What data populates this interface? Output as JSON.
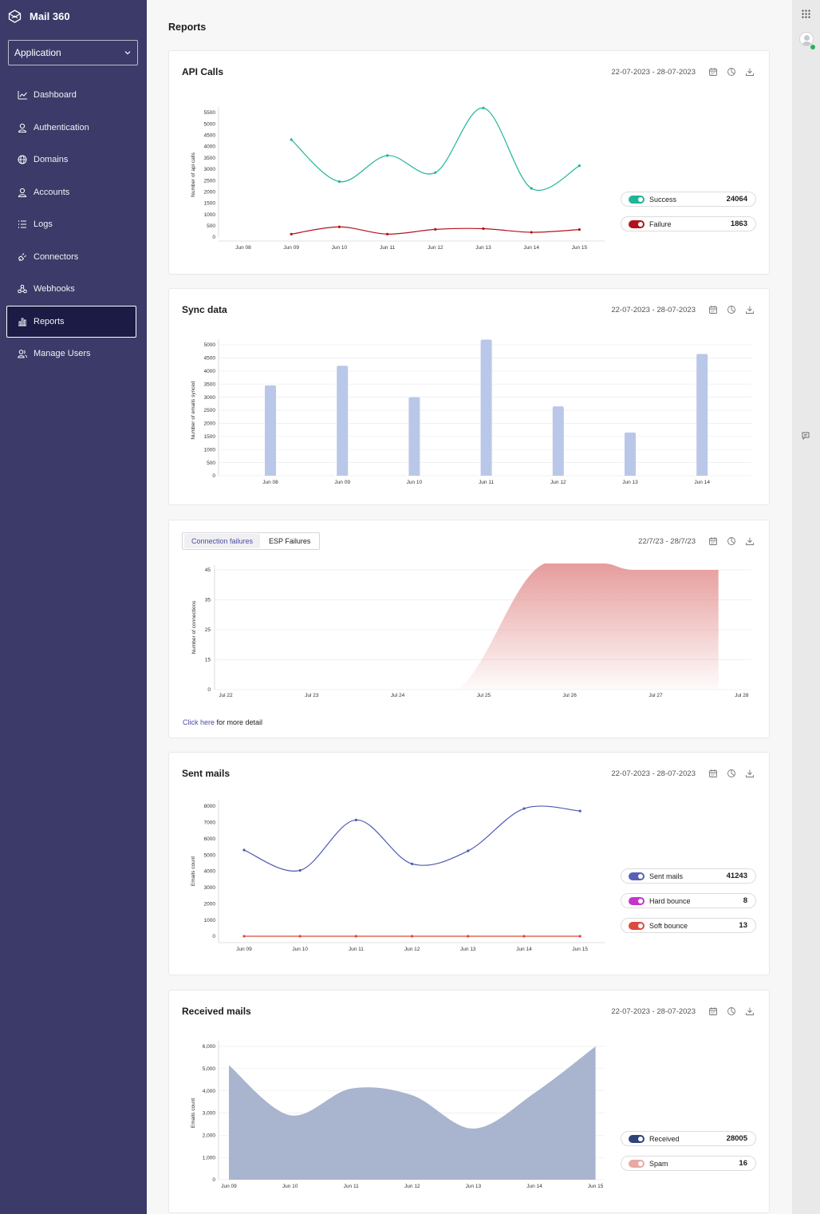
{
  "app": {
    "name": "Mail 360",
    "selector": "Application"
  },
  "sidebar": {
    "items": [
      {
        "label": "Dashboard",
        "icon": "chart-line-icon"
      },
      {
        "label": "Authentication",
        "icon": "user-icon"
      },
      {
        "label": "Domains",
        "icon": "globe-icon"
      },
      {
        "label": "Accounts",
        "icon": "user-icon"
      },
      {
        "label": "Logs",
        "icon": "list-icon"
      },
      {
        "label": "Connectors",
        "icon": "plug-icon"
      },
      {
        "label": "Webhooks",
        "icon": "webhook-icon"
      },
      {
        "label": "Reports",
        "icon": "bar-chart-icon",
        "active": true
      },
      {
        "label": "Manage Users",
        "icon": "users-icon"
      }
    ]
  },
  "page": {
    "title": "Reports"
  },
  "cards": {
    "api": {
      "title": "API Calls",
      "date": "22-07-2023 - 28-07-2023"
    },
    "sync": {
      "title": "Sync data",
      "date": "22-07-2023 - 28-07-2023"
    },
    "connection": {
      "tabs": [
        "Connection failures",
        "ESP Failures"
      ],
      "date": "22/7/23 - 28/7/23",
      "link": "Click here",
      "link_suffix": " for more detail"
    },
    "sent": {
      "title": "Sent mails",
      "date": "22-07-2023 - 28-07-2023"
    },
    "received": {
      "title": "Received mails",
      "date": "22-07-2023 - 28-07-2023"
    }
  },
  "legends": {
    "api": [
      {
        "name": "Success",
        "value": "24064",
        "color": "#1fb59a"
      },
      {
        "name": "Failure",
        "value": "1863",
        "color": "#b3121d"
      }
    ],
    "sent": [
      {
        "name": "Sent mails",
        "value": "41243",
        "color": "#5a5fb8"
      },
      {
        "name": "Hard bounce",
        "value": "8",
        "color": "#c435c9"
      },
      {
        "name": "Soft bounce",
        "value": "13",
        "color": "#dc4a3c"
      }
    ],
    "received": [
      {
        "name": "Received",
        "value": "28005",
        "color": "#2f4479"
      },
      {
        "name": "Spam",
        "value": "16",
        "color": "#e8a8a4"
      }
    ]
  },
  "chart_data": [
    {
      "id": "api",
      "type": "line",
      "ylabel": "Number of api calls",
      "yticks": [
        0,
        500,
        1000,
        1500,
        2000,
        2500,
        3000,
        3500,
        4000,
        4500,
        5000,
        5500
      ],
      "ylim": [
        0,
        5500
      ],
      "categories": [
        "Jun 08",
        "Jun 09",
        "Jun 10",
        "Jun 11",
        "Jun 12",
        "Jun 13",
        "Jun 14",
        "Jun 15"
      ],
      "series": [
        {
          "name": "Success",
          "color": "#1fb59a",
          "values": [
            null,
            4300,
            2450,
            3600,
            2850,
            5700,
            2150,
            3150
          ]
        },
        {
          "name": "Failure",
          "color": "#b3121d",
          "values": [
            null,
            130,
            450,
            130,
            340,
            370,
            210,
            330
          ]
        }
      ]
    },
    {
      "id": "sync",
      "type": "bar",
      "ylabel": "Number of emails synced",
      "yticks": [
        0,
        500,
        1000,
        1500,
        2000,
        2500,
        3000,
        3500,
        4000,
        4500,
        5000
      ],
      "ylim": [
        0,
        5000
      ],
      "categories": [
        "Jun 08",
        "Jun 09",
        "Jun 10",
        "Jun 11",
        "Jun 12",
        "Jun 13",
        "Jun 14"
      ],
      "values": [
        3450,
        4200,
        3000,
        5200,
        2650,
        1650,
        4650
      ],
      "color": "#b9c8e8"
    },
    {
      "id": "connection",
      "type": "area",
      "ylabel": "Number of connections",
      "yticks": [
        0,
        15,
        25,
        35,
        45
      ],
      "categories": [
        "Jul 22",
        "Jul 23",
        "Jul 24",
        "Jul 25",
        "Jul 26",
        "Jul 27",
        "Jul 28"
      ],
      "x": [
        0,
        1,
        2,
        2.7,
        3.8,
        4.3,
        4.7,
        5.5,
        5.73
      ],
      "values": [
        0,
        0,
        0,
        0,
        45,
        45,
        45,
        45,
        45
      ],
      "color": "#e59797"
    },
    {
      "id": "sent",
      "type": "line",
      "ylabel": "Emails count",
      "yticks": [
        0,
        1000,
        2000,
        3000,
        4000,
        5000,
        6000,
        7000,
        8000
      ],
      "ylim": [
        0,
        8000
      ],
      "categories": [
        "Jun 09",
        "Jun 10",
        "Jun 11",
        "Jun 12",
        "Jun 13",
        "Jun 14",
        "Jun 15"
      ],
      "series": [
        {
          "name": "Sent mails",
          "color": "#4e5bb0",
          "values": [
            5300,
            4050,
            7150,
            4450,
            5250,
            7850,
            7700
          ]
        },
        {
          "name": "Soft bounce",
          "color": "#dc4a3c",
          "values": [
            0,
            0,
            0,
            0,
            0,
            0,
            0
          ]
        }
      ]
    },
    {
      "id": "received",
      "type": "area",
      "ylabel": "Emails count",
      "yticks": [
        "0",
        "1,000",
        "2,000",
        "3,000",
        "4,000",
        "5,000",
        "6,000"
      ],
      "ylim": [
        0,
        6000
      ],
      "categories": [
        "Jun 09",
        "Jun 10",
        "Jun 11",
        "Jun 12",
        "Jun 13",
        "Jun 14",
        "Jun 15"
      ],
      "values": [
        5150,
        2900,
        4100,
        3800,
        2300,
        3900,
        6000
      ],
      "color": "#a9b4cf"
    }
  ]
}
